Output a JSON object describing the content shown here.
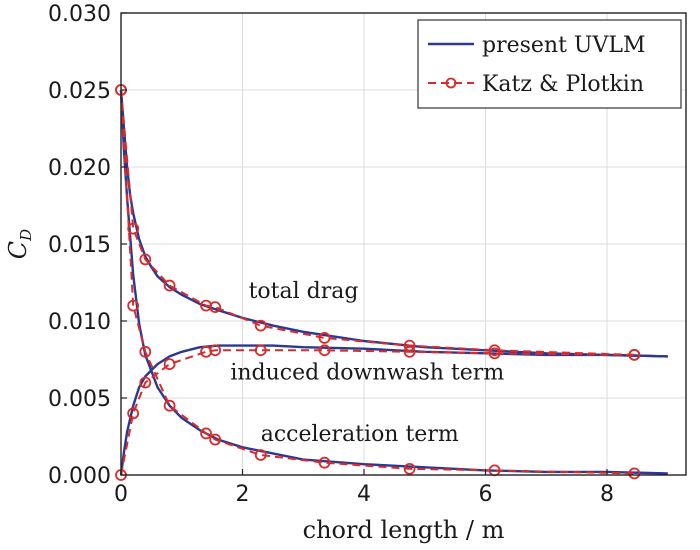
{
  "chart_data": {
    "type": "line",
    "title": "",
    "xlabel": "chord length / m",
    "ylabel": "C",
    "ylabel_subscript": "D",
    "xlim": [
      0,
      9.3
    ],
    "ylim": [
      0,
      0.03
    ],
    "xticks": [
      0,
      2,
      4,
      6,
      8
    ],
    "xtick_labels": [
      "0",
      "2",
      "4",
      "6",
      "8"
    ],
    "yticks": [
      0,
      0.005,
      0.01,
      0.015,
      0.02,
      0.025,
      0.03
    ],
    "ytick_labels": [
      "0.000",
      "0.005",
      "0.010",
      "0.015",
      "0.020",
      "0.025",
      "0.030"
    ],
    "grid": true,
    "legend": {
      "position": "top-right",
      "entries": [
        "present UVLM",
        "Katz & Plotkin"
      ]
    },
    "annotations": [
      {
        "text": "total drag",
        "x": 2.1,
        "y": 0.0115
      },
      {
        "text": "induced downwash term",
        "x": 1.8,
        "y": 0.0062
      },
      {
        "text": "acceleration term",
        "x": 2.3,
        "y": 0.0022
      }
    ],
    "series": [
      {
        "name": "present UVLM (total drag)",
        "style": "solid",
        "color": "#2b3990",
        "x": [
          0,
          0.03,
          0.06,
          0.1,
          0.15,
          0.2,
          0.3,
          0.4,
          0.5,
          0.6,
          0.8,
          1.0,
          1.3,
          1.6,
          2.0,
          2.5,
          3.0,
          3.5,
          4.0,
          5.0,
          6.0,
          7.0,
          8.0,
          9.0
        ],
        "y": [
          0.025,
          0.0235,
          0.022,
          0.02,
          0.0182,
          0.017,
          0.0153,
          0.0142,
          0.0135,
          0.0129,
          0.0122,
          0.0117,
          0.0111,
          0.0107,
          0.0102,
          0.0097,
          0.0093,
          0.009,
          0.0087,
          0.0083,
          0.0081,
          0.0079,
          0.0078,
          0.0077
        ]
      },
      {
        "name": "present UVLM (induced downwash term)",
        "style": "solid",
        "color": "#2b3990",
        "x": [
          0,
          0.05,
          0.1,
          0.2,
          0.3,
          0.4,
          0.6,
          0.8,
          1.0,
          1.3,
          1.6,
          2.0,
          2.5,
          3.0,
          4.0,
          5.0,
          6.0,
          7.0,
          8.0,
          9.0
        ],
        "y": [
          0.0,
          0.0015,
          0.0028,
          0.0045,
          0.0057,
          0.0064,
          0.0072,
          0.0077,
          0.008,
          0.0083,
          0.0084,
          0.0084,
          0.0084,
          0.0083,
          0.0082,
          0.008,
          0.0079,
          0.0078,
          0.0078,
          0.0077
        ]
      },
      {
        "name": "present UVLM (acceleration term)",
        "style": "solid",
        "color": "#2b3990",
        "x": [
          0,
          0.05,
          0.1,
          0.2,
          0.3,
          0.4,
          0.6,
          0.8,
          1.0,
          1.3,
          1.6,
          2.0,
          2.5,
          3.0,
          4.0,
          5.0,
          6.0,
          7.0,
          8.0,
          9.0
        ],
        "y": [
          0.025,
          0.021,
          0.018,
          0.013,
          0.0098,
          0.0078,
          0.0057,
          0.0045,
          0.0037,
          0.0029,
          0.0023,
          0.0018,
          0.0014,
          0.001,
          0.0007,
          0.0005,
          0.0003,
          0.0002,
          0.0002,
          0.0001
        ]
      },
      {
        "name": "Katz & Plotkin (total drag)",
        "style": "dashed-markers",
        "color": "#d92b2b",
        "x": [
          0,
          0.2,
          0.4,
          0.8,
          1.4,
          1.55,
          2.3,
          3.35,
          4.75,
          6.15,
          8.45
        ],
        "y": [
          0.025,
          0.016,
          0.014,
          0.0123,
          0.011,
          0.0109,
          0.0097,
          0.0089,
          0.0084,
          0.0081,
          0.0078
        ]
      },
      {
        "name": "Katz & Plotkin (induced downwash term)",
        "style": "dashed-markers",
        "color": "#d92b2b",
        "x": [
          0,
          0.2,
          0.4,
          0.8,
          1.4,
          1.55,
          2.3,
          3.35,
          4.75,
          6.15,
          8.45
        ],
        "y": [
          0.0,
          0.004,
          0.006,
          0.0072,
          0.008,
          0.0081,
          0.0081,
          0.0081,
          0.008,
          0.0079,
          0.0078
        ]
      },
      {
        "name": "Katz & Plotkin (acceleration term)",
        "style": "dashed-markers",
        "color": "#d92b2b",
        "x": [
          0,
          0.2,
          0.4,
          0.8,
          1.4,
          1.55,
          2.3,
          3.35,
          4.75,
          6.15,
          8.45
        ],
        "y": [
          0.025,
          0.011,
          0.008,
          0.0045,
          0.0027,
          0.0023,
          0.0013,
          0.0008,
          0.0004,
          0.0003,
          0.0001
        ]
      }
    ]
  }
}
